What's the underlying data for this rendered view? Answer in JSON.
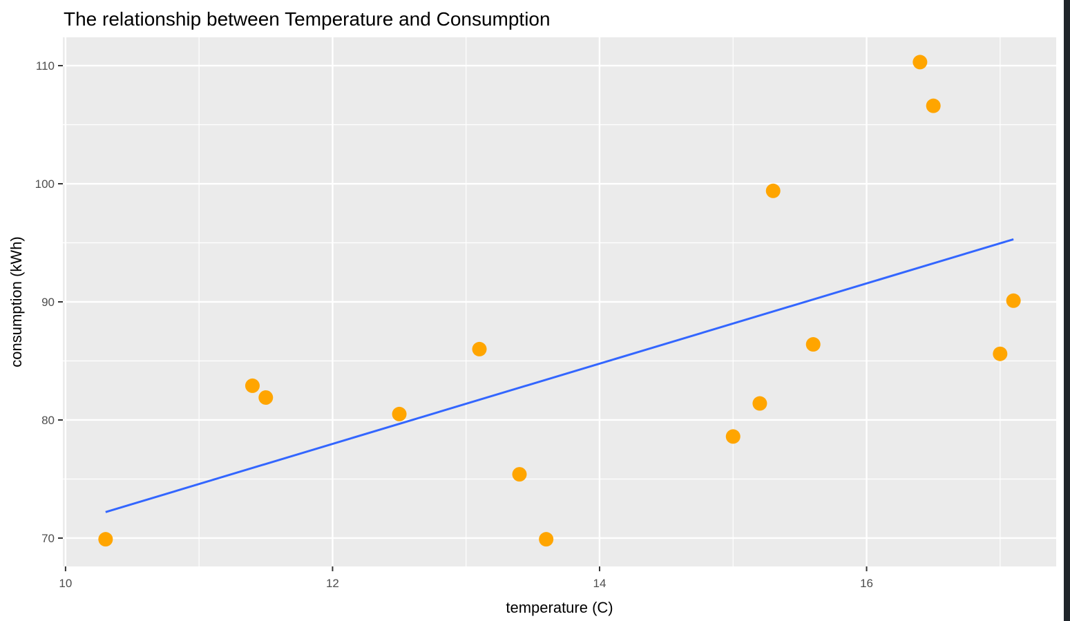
{
  "chart_data": {
    "type": "scatter",
    "title": "The relationship between Temperature and Consumption",
    "xlabel": "temperature (C)",
    "ylabel": "consumption (kWh)",
    "xlim": [
      9.98,
      17.42
    ],
    "ylim": [
      67.6,
      112.4
    ],
    "x_ticks": [
      10,
      12,
      14,
      16
    ],
    "x_minor_ticks": [
      11,
      13,
      15,
      17
    ],
    "y_ticks": [
      70,
      80,
      90,
      100,
      110
    ],
    "y_minor_ticks": [
      75,
      85,
      95,
      105
    ],
    "grid": true,
    "background_color": "#ebebeb",
    "grid_color": "#ffffff",
    "point_color": "#ffa500",
    "line_color": "#3366ff",
    "points": [
      {
        "x": 10.3,
        "y": 69.9
      },
      {
        "x": 11.4,
        "y": 82.9
      },
      {
        "x": 11.5,
        "y": 81.9
      },
      {
        "x": 12.5,
        "y": 80.5
      },
      {
        "x": 13.1,
        "y": 86.0
      },
      {
        "x": 13.4,
        "y": 75.4
      },
      {
        "x": 13.6,
        "y": 69.9
      },
      {
        "x": 15.0,
        "y": 78.6
      },
      {
        "x": 15.2,
        "y": 81.4
      },
      {
        "x": 15.3,
        "y": 99.4
      },
      {
        "x": 15.6,
        "y": 86.4
      },
      {
        "x": 16.4,
        "y": 110.3
      },
      {
        "x": 16.5,
        "y": 106.6
      },
      {
        "x": 17.0,
        "y": 85.6
      },
      {
        "x": 17.1,
        "y": 90.1
      }
    ],
    "trend_line": {
      "type": "linear",
      "points": [
        {
          "x": 10.3,
          "y": 72.2
        },
        {
          "x": 17.1,
          "y": 95.3
        }
      ]
    }
  }
}
